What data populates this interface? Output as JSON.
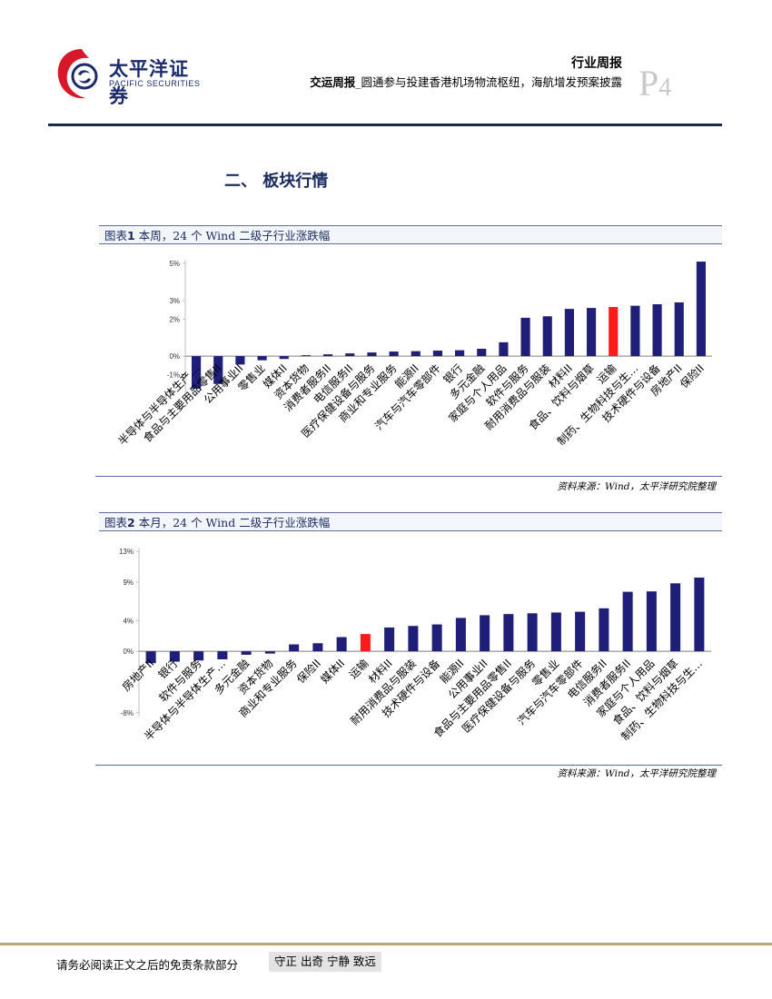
{
  "header": {
    "logo_cn": "太平洋证券",
    "logo_en": "PACIFIC SECURITIES",
    "report_type": "行业周报",
    "headline_bold": "交运周报",
    "headline_rest": "_圆通参与投建香港机场物流枢纽，海航增发预案披露",
    "page_letter": "P",
    "page_number": "4"
  },
  "section_title": "二、 板块行情",
  "colors": {
    "bar": "#1f1f7a",
    "highlight": "#ff1a1a",
    "navy": "#1a2a5e"
  },
  "chart_data": [
    {
      "type": "bar",
      "caption_prefix": "图表",
      "caption_number": "1",
      "caption_text": " 本周，24 个 Wind 二级子行业涨跌幅",
      "title": "本周，24 个 Wind 二级子行业涨跌幅",
      "ytick_labels": [
        "5%",
        "3%",
        "2%",
        "0%",
        "-1%"
      ],
      "ytick_values": [
        5,
        3,
        2,
        0,
        -1
      ],
      "ylim": [
        -1.95,
        5.2
      ],
      "highlight_category": "运输",
      "categories": [
        "半导体与半导体生产…",
        "食品与主要用品零售II",
        "公用事业II",
        "零售业",
        "媒体II",
        "资本货物",
        "消费者服务II",
        "电信服务II",
        "医疗保健设备与服务",
        "商业和专业服务",
        "能源II",
        "汽车与汽车零部件",
        "银行",
        "多元金融",
        "家庭与个人用品",
        "软件与服务",
        "耐用消费品与服装",
        "材料II",
        "食品、饮料与烟草",
        "运输",
        "制药、生物科技与生…",
        "技术硬件与设备",
        "房地产II",
        "保险II"
      ],
      "values": [
        -1.75,
        -1.5,
        -0.45,
        -0.22,
        -0.15,
        0.05,
        0.1,
        0.15,
        0.2,
        0.25,
        0.27,
        0.3,
        0.32,
        0.4,
        0.75,
        2.07,
        2.15,
        2.55,
        2.6,
        2.65,
        2.72,
        2.8,
        2.9,
        5.1
      ],
      "source": "资料来源：Wind，太平洋研究院整理"
    },
    {
      "type": "bar",
      "caption_prefix": "图表",
      "caption_number": "2",
      "caption_text": " 本月，24 个 Wind 二级子行业涨跌幅",
      "title": "本月，24 个 Wind 二级子行业涨跌幅",
      "ytick_labels": [
        "13%",
        "9%",
        "4%",
        "0%",
        "-8%"
      ],
      "ytick_values": [
        13,
        9,
        4,
        0,
        -8
      ],
      "ylim": [
        -8.5,
        13.5
      ],
      "highlight_category": "运输",
      "categories": [
        "房地产II",
        "银行",
        "软件与服务",
        "半导体与半导体生产…",
        "多元金融",
        "资本货物",
        "商业和专业服务",
        "保险II",
        "媒体II",
        "运输",
        "材料II",
        "耐用消费品与服装",
        "技术硬件与设备",
        "能源II",
        "公用事业II",
        "食品与主要用品零售II",
        "医疗保健设备与服务",
        "零售业",
        "汽车与汽车零部件",
        "电信服务II",
        "消费者服务II",
        "家庭与个人用品",
        "食品、饮料与烟草",
        "制药、生物科技与生…"
      ],
      "values": [
        -1.55,
        -1.35,
        -1.2,
        -1.05,
        -0.45,
        -0.3,
        0.9,
        1.05,
        1.85,
        2.25,
        3.1,
        3.3,
        3.5,
        4.35,
        4.7,
        4.85,
        4.95,
        5.05,
        5.15,
        5.6,
        7.75,
        7.8,
        8.85,
        9.6
      ],
      "source": "资料来源：Wind，太平洋研究院整理"
    }
  ],
  "footer": {
    "disclaimer": "请务必阅读正文之后的免责条款部分",
    "motto": "守正 出奇 宁静 致远"
  }
}
